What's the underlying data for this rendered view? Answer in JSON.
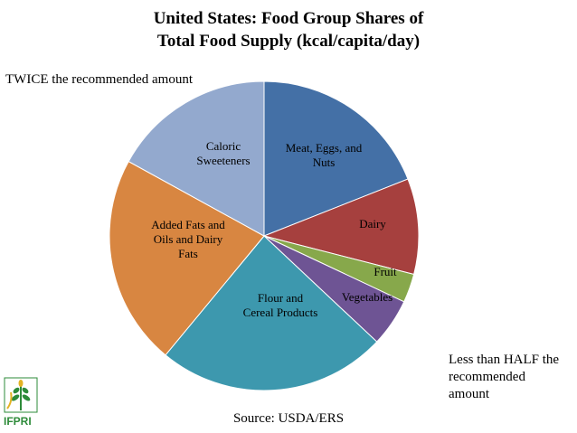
{
  "chart_data": {
    "type": "pie",
    "title_lines": [
      "United States: Food Group Shares of",
      "Total Food Supply (kcal/capita/day)"
    ],
    "slices": [
      {
        "label_lines": [
          "Meat, Eggs, and",
          "Nuts"
        ],
        "value": 19,
        "color": "#4470a6"
      },
      {
        "label_lines": [
          "Dairy"
        ],
        "value": 10,
        "color": "#a6403e"
      },
      {
        "label_lines": [
          "Fruit"
        ],
        "value": 3,
        "color": "#87a84b"
      },
      {
        "label_lines": [
          "Vegetables"
        ],
        "value": 5,
        "color": "#6e5494"
      },
      {
        "label_lines": [
          "Flour and",
          "Cereal Products"
        ],
        "value": 24,
        "color": "#3d98ae"
      },
      {
        "label_lines": [
          "Added Fats and",
          "Oils and Dairy",
          "Fats"
        ],
        "value": 22,
        "color": "#d88641"
      },
      {
        "label_lines": [
          "Caloric",
          "Sweeteners"
        ],
        "value": 17,
        "color": "#93a9ce"
      }
    ],
    "start_angle": "12 o'clock",
    "direction": "clockwise",
    "legend": "none"
  },
  "annotations": {
    "twice": "TWICE the recommended amount",
    "half_lines": [
      "Less than HALF the",
      "recommended",
      "amount"
    ]
  },
  "source": "Source: USDA/ERS",
  "logo": {
    "text": "IFPRI",
    "color": "#2e8b3a",
    "icon": "wheat-icon"
  }
}
